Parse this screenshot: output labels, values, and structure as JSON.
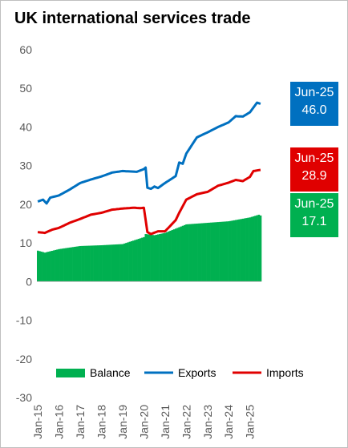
{
  "chart_data": {
    "type": "bar+line",
    "title": "UK international services trade",
    "ylim": [
      -30,
      60
    ],
    "yticks": [
      -30,
      -20,
      -10,
      0,
      10,
      20,
      30,
      40,
      50,
      60
    ],
    "x_start": "2015-01",
    "x_tick_labels": [
      "Jan-15",
      "Jan-16",
      "Jan-17",
      "Jan-18",
      "Jan-19",
      "Jan-20",
      "Jan-21",
      "Jan-22",
      "Jan-23",
      "Jan-24",
      "Jan-25"
    ],
    "grid": false,
    "legend_position": "bottom",
    "series": [
      {
        "name": "Balance",
        "type": "bar",
        "color": "#00b050",
        "anchors": [
          [
            0,
            8.0
          ],
          [
            4,
            7.5
          ],
          [
            12,
            8.4
          ],
          [
            24,
            9.2
          ],
          [
            36,
            9.4
          ],
          [
            48,
            9.7
          ],
          [
            60,
            11.5
          ],
          [
            61,
            12.3
          ],
          [
            66,
            12.0
          ],
          [
            72,
            12.6
          ],
          [
            84,
            14.8
          ],
          [
            96,
            15.2
          ],
          [
            108,
            15.6
          ],
          [
            120,
            16.6
          ],
          [
            125,
            17.3
          ],
          [
            126,
            17.1
          ]
        ]
      },
      {
        "name": "Exports",
        "type": "line",
        "color": "#0070c0",
        "anchors": [
          [
            0,
            20.7
          ],
          [
            3,
            21.2
          ],
          [
            5,
            20.2
          ],
          [
            7,
            21.7
          ],
          [
            12,
            22.3
          ],
          [
            18,
            23.8
          ],
          [
            24,
            25.5
          ],
          [
            30,
            26.4
          ],
          [
            36,
            27.2
          ],
          [
            42,
            28.2
          ],
          [
            48,
            28.6
          ],
          [
            56,
            28.4
          ],
          [
            60,
            29.1
          ],
          [
            61,
            29.5
          ],
          [
            62,
            24.3
          ],
          [
            64,
            24.0
          ],
          [
            66,
            24.6
          ],
          [
            68,
            24.2
          ],
          [
            72,
            25.5
          ],
          [
            78,
            27.3
          ],
          [
            80,
            30.8
          ],
          [
            82,
            30.5
          ],
          [
            84,
            33.1
          ],
          [
            90,
            37.3
          ],
          [
            96,
            38.6
          ],
          [
            102,
            40.0
          ],
          [
            108,
            41.2
          ],
          [
            112,
            42.8
          ],
          [
            116,
            42.7
          ],
          [
            120,
            43.8
          ],
          [
            124,
            46.3
          ],
          [
            126,
            46.0
          ]
        ]
      },
      {
        "name": "Imports",
        "type": "line",
        "color": "#e00000",
        "anchors": [
          [
            0,
            12.8
          ],
          [
            4,
            12.6
          ],
          [
            8,
            13.4
          ],
          [
            12,
            13.9
          ],
          [
            18,
            15.2
          ],
          [
            24,
            16.2
          ],
          [
            30,
            17.3
          ],
          [
            36,
            17.8
          ],
          [
            42,
            18.6
          ],
          [
            48,
            18.9
          ],
          [
            54,
            19.1
          ],
          [
            58,
            19.0
          ],
          [
            60,
            19.1
          ],
          [
            61,
            16.0
          ],
          [
            62,
            12.8
          ],
          [
            64,
            12.3
          ],
          [
            68,
            13.0
          ],
          [
            72,
            13.0
          ],
          [
            78,
            15.9
          ],
          [
            80,
            17.8
          ],
          [
            84,
            21.2
          ],
          [
            90,
            22.6
          ],
          [
            96,
            23.2
          ],
          [
            102,
            24.8
          ],
          [
            108,
            25.6
          ],
          [
            112,
            26.3
          ],
          [
            116,
            26.0
          ],
          [
            120,
            27.1
          ],
          [
            122,
            28.6
          ],
          [
            126,
            28.9
          ]
        ]
      }
    ]
  },
  "callouts": [
    {
      "period": "Jun-25",
      "value": "46.0",
      "color": "#0070c0",
      "y": 46.0
    },
    {
      "period": "Jun-25",
      "value": "28.9",
      "color": "#e00000",
      "y": 28.9
    },
    {
      "period": "Jun-25",
      "value": "17.1",
      "color": "#00b050",
      "y": 17.1
    }
  ]
}
